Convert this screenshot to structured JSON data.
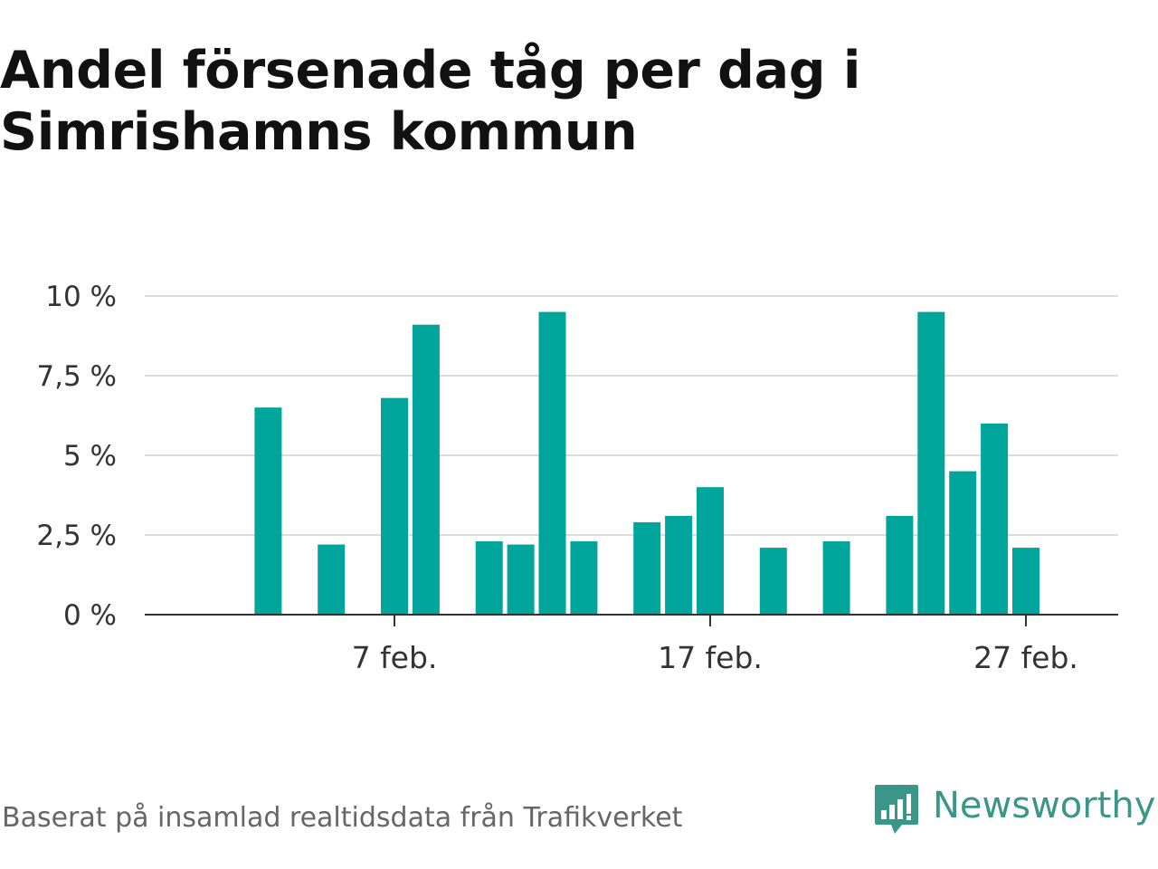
{
  "title": "Andel försenade tåg per dag i Simrishamns kommun",
  "footer": {
    "source": "Baserat på insamlad realtidsdata från Trafikverket",
    "brand": "Newsworthy"
  },
  "colors": {
    "bar": "#00a69b",
    "grid": "#dcdcdc",
    "axis": "#333333",
    "brand": "#3a9689"
  },
  "chart_data": {
    "type": "bar",
    "title": "Andel försenade tåg per dag i Simrishamns kommun",
    "xlabel": "",
    "ylabel": "",
    "ylim": [
      0,
      10
    ],
    "xlim": [
      "2023-01-30",
      "2023-03-02"
    ],
    "grid": true,
    "y_ticks": [
      {
        "value": 0,
        "label": "0 %"
      },
      {
        "value": 2.5,
        "label": "2,5 %"
      },
      {
        "value": 5,
        "label": "5 %"
      },
      {
        "value": 7.5,
        "label": "7,5 %"
      },
      {
        "value": 10,
        "label": "10 %"
      }
    ],
    "x_ticks": [
      {
        "date": "2023-02-07",
        "label": "7 feb."
      },
      {
        "date": "2023-02-17",
        "label": "17 feb."
      },
      {
        "date": "2023-02-27",
        "label": "27 feb."
      }
    ],
    "series": [
      {
        "points": [
          {
            "date": "2023-02-03",
            "value": 6.5
          },
          {
            "date": "2023-02-05",
            "value": 2.2
          },
          {
            "date": "2023-02-07",
            "value": 6.8
          },
          {
            "date": "2023-02-08",
            "value": 9.1
          },
          {
            "date": "2023-02-10",
            "value": 2.3
          },
          {
            "date": "2023-02-11",
            "value": 2.2
          },
          {
            "date": "2023-02-12",
            "value": 9.5
          },
          {
            "date": "2023-02-13",
            "value": 2.3
          },
          {
            "date": "2023-02-15",
            "value": 2.9
          },
          {
            "date": "2023-02-16",
            "value": 3.1
          },
          {
            "date": "2023-02-17",
            "value": 4.0
          },
          {
            "date": "2023-02-19",
            "value": 2.1
          },
          {
            "date": "2023-02-21",
            "value": 2.3
          },
          {
            "date": "2023-02-23",
            "value": 3.1
          },
          {
            "date": "2023-02-24",
            "value": 9.5
          },
          {
            "date": "2023-02-25",
            "value": 4.5
          },
          {
            "date": "2023-02-26",
            "value": 6.0
          },
          {
            "date": "2023-02-27",
            "value": 2.1
          }
        ]
      }
    ]
  }
}
